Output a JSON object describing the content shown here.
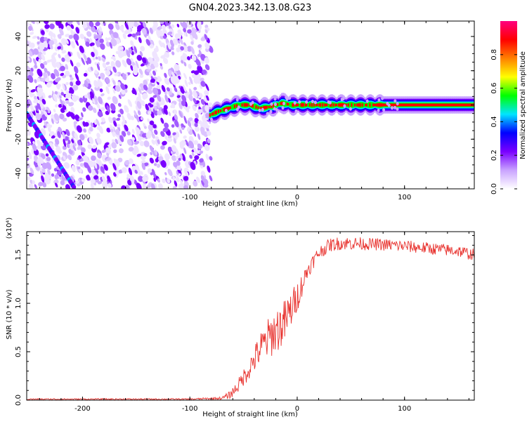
{
  "title": "GN04.2023.342.13.08.G23",
  "colors": {
    "snr_line": "#e8332f",
    "axis": "#000000",
    "background": "#ffffff"
  },
  "chart_data": [
    {
      "type": "heatmap",
      "title": "GN04.2023.342.13.08.G23",
      "xlabel": "Height of straight line (km)",
      "ylabel": "Frequency (Hz)",
      "xlim": [
        -252,
        165
      ],
      "ylim": [
        -49,
        49
      ],
      "xticks": [
        -200,
        -100,
        0,
        100
      ],
      "yticks": [
        -40,
        -20,
        0,
        20,
        40
      ],
      "xtick_labels": [
        "-200",
        "-100",
        "0",
        "100"
      ],
      "ytick_labels": [
        "-40",
        "-20",
        "0",
        "20",
        "40"
      ],
      "noise_region_x": [
        -252,
        -83
      ],
      "diagonal_track": {
        "x": [
          -252,
          -208
        ],
        "y": [
          -5,
          -48
        ]
      },
      "signal_track": {
        "x": [
          -82,
          -75,
          -65,
          -55,
          -45,
          -35,
          -25,
          -15,
          -5,
          5,
          20,
          40,
          60,
          80,
          100,
          130,
          165
        ],
        "y": [
          -6,
          -4,
          -2,
          0,
          0,
          -2,
          -1,
          1,
          0,
          0,
          0,
          0,
          0,
          0,
          0,
          0,
          0
        ]
      },
      "colorbar": {
        "label": "Normalized spectral amplitude",
        "range": [
          0.0,
          1.0
        ],
        "ticks": [
          0.0,
          0.2,
          0.4,
          0.6,
          0.8
        ],
        "tick_labels": [
          "0.0",
          "0.2",
          "0.4",
          "0.6",
          "0.8"
        ],
        "colormap": [
          "#ffffff",
          "#c9a3ff",
          "#7a00ff",
          "#0000ff",
          "#00e5ff",
          "#00ff00",
          "#ffff00",
          "#ff8000",
          "#ff0000",
          "#ff0080"
        ]
      }
    },
    {
      "type": "line",
      "xlabel": "Height of straight line (km)",
      "ylabel": "SNR (10 * v/v)",
      "yscale_note": "(x10⁴)",
      "xlim": [
        -252,
        165
      ],
      "ylim": [
        0,
        1.74
      ],
      "xticks": [
        -200,
        -100,
        0,
        100
      ],
      "yticks": [
        0.0,
        0.5,
        1.0,
        1.5
      ],
      "xtick_labels": [
        "-200",
        "-100",
        "0",
        "100"
      ],
      "ytick_labels": [
        "0.0",
        "0.5",
        "1.0",
        "1.5"
      ],
      "series": [
        {
          "x": [
            -252,
            -200,
            -100,
            -70,
            -62,
            -55,
            -45,
            -35,
            -28,
            -20,
            -12,
            -5,
            2,
            10,
            20,
            30,
            40,
            50,
            70,
            90,
            110,
            130,
            150,
            165
          ],
          "y": [
            0.01,
            0.01,
            0.01,
            0.02,
            0.06,
            0.15,
            0.32,
            0.52,
            0.62,
            0.72,
            0.8,
            0.95,
            1.12,
            1.35,
            1.52,
            1.6,
            1.62,
            1.62,
            1.61,
            1.6,
            1.58,
            1.56,
            1.54,
            1.5
          ],
          "noise": [
            0.005,
            0.005,
            0.005,
            0.01,
            0.03,
            0.05,
            0.08,
            0.12,
            0.15,
            0.17,
            0.17,
            0.14,
            0.1,
            0.06,
            0.05,
            0.05,
            0.05,
            0.05,
            0.045,
            0.045,
            0.045,
            0.045,
            0.045,
            0.045
          ]
        }
      ]
    }
  ]
}
